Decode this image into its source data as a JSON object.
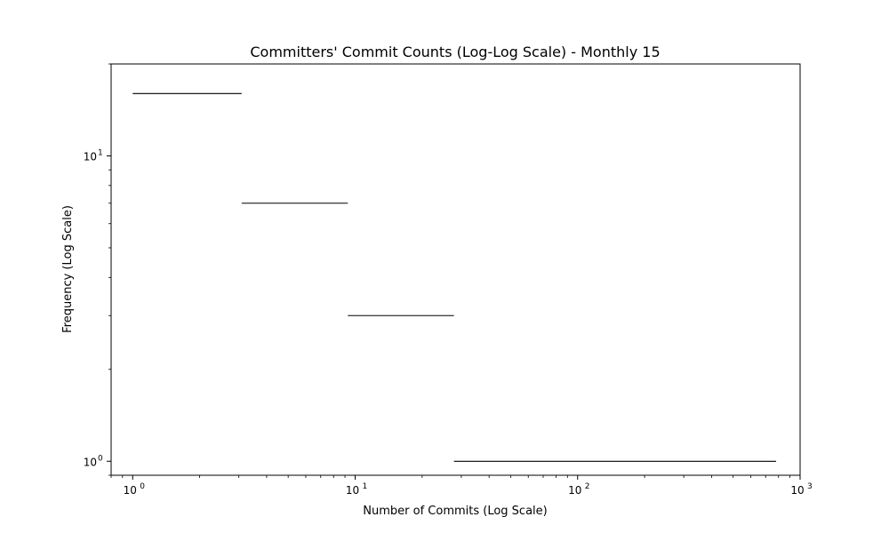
{
  "chart_data": {
    "type": "histogram",
    "title": "Committers' Commit Counts (Log-Log Scale) - Monthly 15",
    "xlabel": "Number of Commits (Log Scale)",
    "ylabel": "Frequency (Log Scale)",
    "xscale": "log",
    "yscale": "log",
    "xlim": [
      0.8,
      1000
    ],
    "ylim": [
      0.9,
      20
    ],
    "grid": false,
    "x_ticks": [
      {
        "base": "10",
        "exp": "0",
        "value": 1
      },
      {
        "base": "10",
        "exp": "1",
        "value": 10
      },
      {
        "base": "10",
        "exp": "2",
        "value": 100
      },
      {
        "base": "10",
        "exp": "3",
        "value": 1000
      }
    ],
    "y_ticks": [
      {
        "base": "10",
        "exp": "0",
        "value": 1
      },
      {
        "base": "10",
        "exp": "1",
        "value": 10
      }
    ],
    "bins": [
      {
        "x_start": 1,
        "x_end": 3.09,
        "count": 16
      },
      {
        "x_start": 3.09,
        "x_end": 9.27,
        "count": 7
      },
      {
        "x_start": 9.27,
        "x_end": 27.8,
        "count": 3
      },
      {
        "x_start": 27.8,
        "x_end": 780,
        "count": 1
      }
    ],
    "colors": {
      "line": "#000000",
      "axes": "#000000",
      "background": "#ffffff"
    }
  }
}
